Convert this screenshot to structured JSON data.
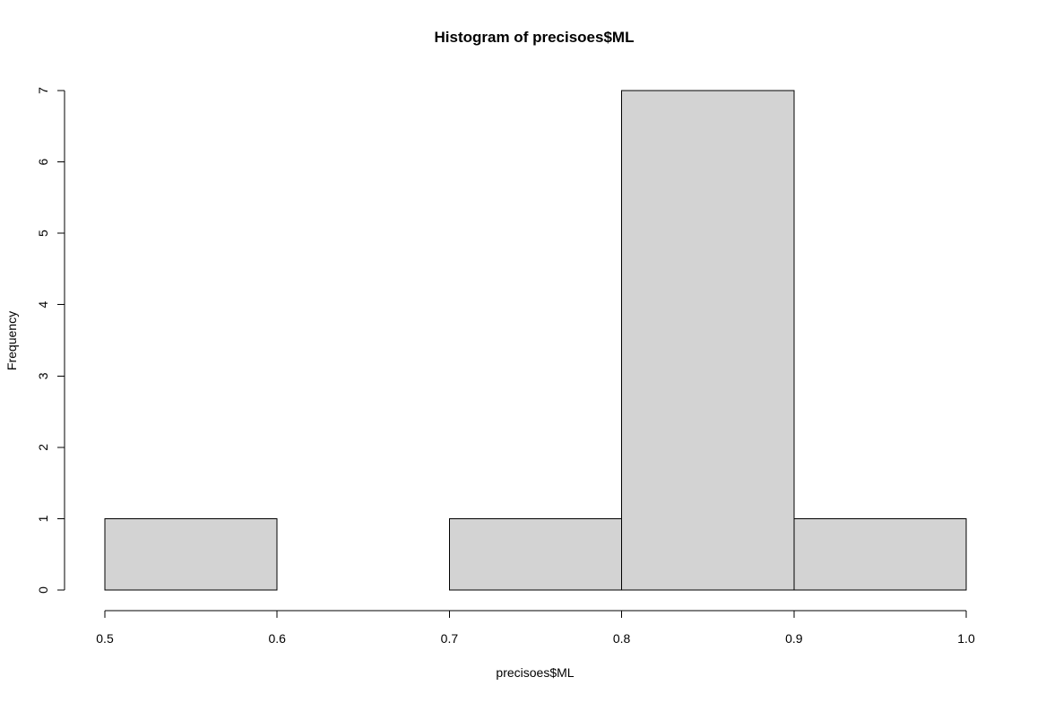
{
  "chart_data": {
    "type": "bar",
    "title": "Histogram of precisoes$ML",
    "xlabel": "precisoes$ML",
    "ylabel": "Frequency",
    "bins": [
      {
        "from": 0.5,
        "to": 0.6,
        "count": 1
      },
      {
        "from": 0.6,
        "to": 0.7,
        "count": 0
      },
      {
        "from": 0.7,
        "to": 0.8,
        "count": 1
      },
      {
        "from": 0.8,
        "to": 0.9,
        "count": 7
      },
      {
        "from": 0.9,
        "to": 1.0,
        "count": 1
      }
    ],
    "xlim": [
      0.5,
      1.0
    ],
    "ylim": [
      0,
      7
    ],
    "x_ticks": [
      "0.5",
      "0.6",
      "0.7",
      "0.8",
      "0.9",
      "1.0"
    ],
    "y_ticks": [
      "0",
      "1",
      "2",
      "3",
      "4",
      "5",
      "6",
      "7"
    ],
    "grid": false,
    "bar_fill": "#d3d3d3",
    "bar_stroke": "#000000"
  }
}
